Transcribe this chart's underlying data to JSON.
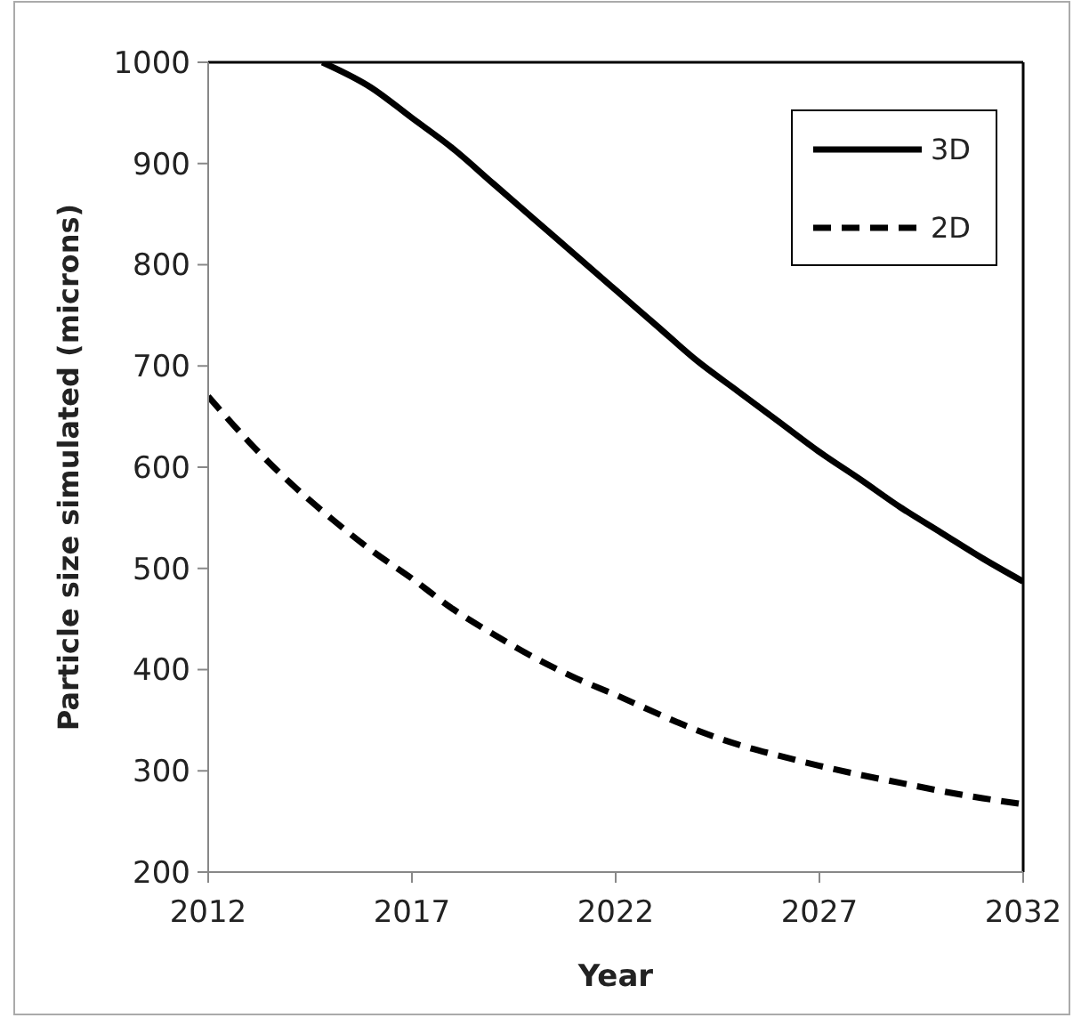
{
  "chart_data": {
    "type": "line",
    "xlabel": "Year",
    "ylabel": "Particle size simulated (microns)",
    "xlim": [
      2012,
      2032
    ],
    "xticks": [
      2012,
      2017,
      2022,
      2027,
      2032
    ],
    "ylim": [
      200,
      1000
    ],
    "yticks": [
      200,
      300,
      400,
      500,
      600,
      700,
      800,
      900,
      1000
    ],
    "grid": false,
    "legend": "top right",
    "marker": "none",
    "series": [
      {
        "name": "3D",
        "color": "#000000",
        "line_style": "solid",
        "x": [
          2014.8,
          2016,
          2017,
          2018,
          2019,
          2020,
          2021,
          2022,
          2023,
          2024,
          2025,
          2026,
          2027,
          2028,
          2029,
          2030,
          2031,
          2032
        ],
        "values": [
          1000,
          975,
          945,
          915,
          880,
          845,
          810,
          775,
          740,
          705,
          675,
          645,
          615,
          588,
          560,
          535,
          510,
          487
        ]
      },
      {
        "name": "2D",
        "color": "#000000",
        "line_style": "dashed",
        "x": [
          2012,
          2013,
          2014,
          2015,
          2016,
          2017,
          2018,
          2019,
          2020,
          2021,
          2022,
          2023,
          2024,
          2025,
          2026,
          2027,
          2028,
          2029,
          2030,
          2031,
          2032
        ],
        "values": [
          670,
          625,
          585,
          550,
          518,
          490,
          460,
          435,
          412,
          392,
          375,
          357,
          340,
          326,
          315,
          305,
          296,
          288,
          280,
          273,
          267
        ]
      }
    ]
  }
}
